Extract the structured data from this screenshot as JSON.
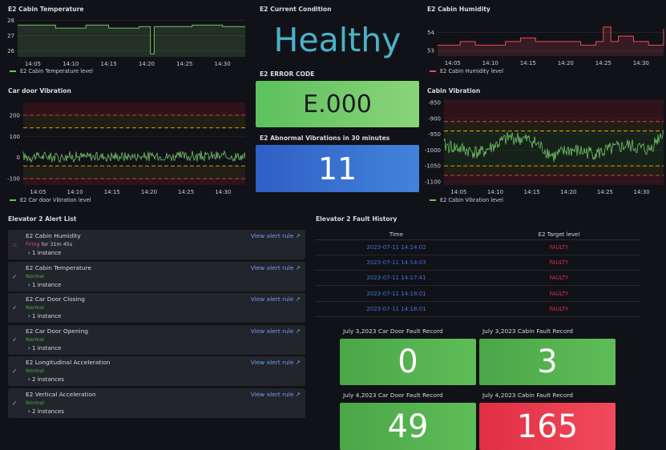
{
  "cabin_temp": {
    "title": "E2 Cabin Temperature",
    "legend": "E2 Cabin Temperature level",
    "color": "#73bf69",
    "y_ticks": [
      "28",
      "27",
      "26"
    ],
    "x_ticks": [
      "14:05",
      "14:10",
      "14:15",
      "14:20",
      "14:25",
      "14:30"
    ]
  },
  "current_condition": {
    "title": "E2 Current Condition",
    "value": "Healthy",
    "color": "#4bb2c9"
  },
  "cabin_humidity": {
    "title": "E2 Cabin Humidity",
    "legend": "E2 Cabin Humidity level",
    "color": "#f2495c",
    "y_ticks": [
      "54",
      "53"
    ],
    "x_ticks": [
      "14:05",
      "14:10",
      "14:15",
      "14:20",
      "14:25",
      "14:30"
    ]
  },
  "door_vibration": {
    "title": "Car door Vibration",
    "legend": "E2 Car door Vibration level",
    "color": "#73bf69",
    "y_ticks": [
      "200",
      "100",
      "0",
      "-100"
    ],
    "x_ticks": [
      "14:05",
      "14:10",
      "14:15",
      "14:20",
      "14:25",
      "14:30"
    ]
  },
  "error_code": {
    "title": "E2 ERROR CODE",
    "value": "E.000"
  },
  "abnormal_vibrations": {
    "title": "E2 Abnormal Vibrations in 30 minutes",
    "value": "11"
  },
  "cabin_vibration": {
    "title": "Cabin Vibration",
    "legend": "E2 Cabin Vibration level",
    "color": "#73bf69",
    "y_ticks": [
      "-850",
      "-900",
      "-950",
      "-1000",
      "-1050",
      "-1100"
    ],
    "x_ticks": [
      "14:05",
      "14:10",
      "14:15",
      "14:20",
      "14:25",
      "14:30"
    ]
  },
  "alert_list": {
    "title": "Elevator 2 Alert List",
    "link_label": "View alert rule",
    "items": [
      {
        "name": "E2 Cabin Humidity",
        "state": "Firing",
        "duration": "for 31m 45s",
        "instances": "1 instance"
      },
      {
        "name": "E2 Cabin Temperature",
        "state": "Normal",
        "duration": "",
        "instances": "1 instance"
      },
      {
        "name": "E2 Car Door Closing",
        "state": "Normal",
        "duration": "",
        "instances": "1 instance"
      },
      {
        "name": "E2 Car Door Opening",
        "state": "Normal",
        "duration": "",
        "instances": "1 instance"
      },
      {
        "name": "E2 Longitudinal Acceleration",
        "state": "Normal",
        "duration": "",
        "instances": "2 instances"
      },
      {
        "name": "E2 Vertical Acceleration",
        "state": "Normal",
        "duration": "",
        "instances": "2 instances"
      }
    ]
  },
  "fault_history": {
    "title": "Elevator 2 Fault History",
    "columns": [
      "Time",
      "E2 Target level"
    ],
    "rows": [
      [
        "2023-07-11 14:14:02",
        "FAULTY"
      ],
      [
        "2023-07-11 14:14:03",
        "FAULTY"
      ],
      [
        "2023-07-11 14:17:41",
        "FAULTY"
      ],
      [
        "2023-07-11 14:18:01",
        "FAULTY"
      ],
      [
        "2023-07-11 14:18:01",
        "FAULTY"
      ]
    ]
  },
  "fault_records": [
    {
      "title": "July 3,2023 Car Door Fault Record",
      "value": "0",
      "color": "green"
    },
    {
      "title": "July 3,2023 Cabin Fault Record",
      "value": "3",
      "color": "green"
    },
    {
      "title": "July 4,2023 Car Door Fault Record",
      "value": "49",
      "color": "green"
    },
    {
      "title": "July 4,2023 Cabin Fault Record",
      "value": "165",
      "color": "red"
    }
  ],
  "chart_data": [
    {
      "type": "line",
      "title": "E2 Cabin Temperature",
      "series": [
        {
          "name": "E2 Cabin Temperature level",
          "x": [
            "14:03",
            "14:07",
            "14:08",
            "14:11",
            "14:12",
            "14:14",
            "14:15",
            "14:18",
            "14:19",
            "14:20",
            "14:20.5",
            "14:21",
            "14:25",
            "14:26",
            "14:29",
            "14:30",
            "14:33"
          ],
          "values": [
            27.7,
            27.7,
            27.5,
            27.5,
            27.7,
            27.7,
            27.5,
            27.5,
            27.6,
            27.6,
            25.8,
            27.6,
            27.6,
            27.7,
            27.7,
            27.6,
            27.6
          ]
        }
      ],
      "ylim": [
        25.6,
        28.3
      ]
    },
    {
      "type": "line",
      "title": "E2 Cabin Humidity",
      "series": [
        {
          "name": "E2 Cabin Humidity level",
          "x": [
            "14:03",
            "14:05",
            "14:06",
            "14:08",
            "14:10",
            "14:12",
            "14:14",
            "14:16",
            "14:18",
            "14:20",
            "14:22",
            "14:24",
            "14:25",
            "14:26",
            "14:27",
            "14:29",
            "14:31",
            "14:33"
          ],
          "values": [
            53.3,
            53.3,
            53.5,
            53.3,
            53.3,
            53.5,
            53.7,
            53.5,
            53.5,
            53.5,
            53.3,
            53.5,
            54.3,
            53.5,
            53.8,
            53.5,
            53.3,
            54.2
          ]
        }
      ],
      "ylim": [
        52.7,
        54.6
      ]
    },
    {
      "type": "line",
      "title": "Car door Vibration",
      "series": [
        {
          "name": "E2 Car door Vibration level",
          "mean": 5,
          "amplitude": 30
        }
      ],
      "ylim": [
        -130,
        260
      ],
      "thresholds": [
        -100,
        -40,
        140,
        200
      ]
    },
    {
      "type": "line",
      "title": "Cabin Vibration",
      "series": [
        {
          "name": "E2 Cabin Vibration level",
          "x": [
            "14:03",
            "14:08",
            "14:12",
            "14:15",
            "14:18",
            "14:20",
            "14:24",
            "14:28",
            "14:31",
            "14:33"
          ],
          "values": [
            -985,
            -1010,
            -960,
            -970,
            -1020,
            -1000,
            -1010,
            -985,
            -1000,
            -940
          ]
        }
      ],
      "ylim": [
        -1110,
        -840
      ],
      "thresholds": [
        -1080,
        -1050,
        -940,
        -910
      ]
    }
  ]
}
